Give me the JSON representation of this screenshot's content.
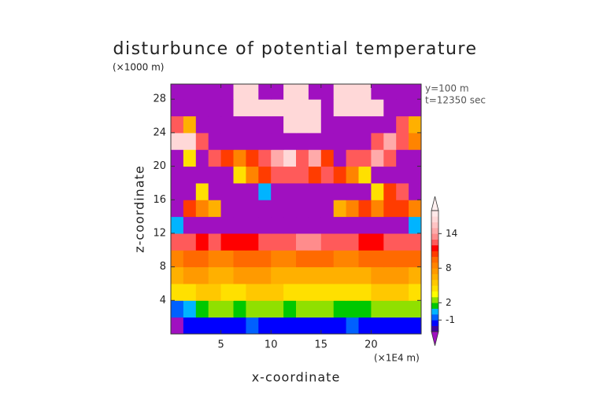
{
  "chart_data": {
    "type": "heatmap",
    "title": "disturbunce of potential temperature",
    "x_label": "x-coordinate",
    "y_label": "z-coordinate",
    "x_unit": "(×1E4 m)",
    "y_unit": "(×1000 m)",
    "annotations": [
      "y=100 m",
      "t=12350 sec"
    ],
    "xlim": [
      0,
      25
    ],
    "ylim": [
      0,
      29.8
    ],
    "xticks": [
      5,
      10,
      15,
      20
    ],
    "yticks": [
      4,
      8,
      12,
      16,
      20,
      24,
      28
    ],
    "x_edges": [
      0,
      1.25,
      2.5,
      3.75,
      5,
      6.25,
      7.5,
      8.75,
      10,
      11.25,
      12.5,
      13.75,
      15,
      16.25,
      17.5,
      18.75,
      20,
      21.25,
      22.5,
      23.75,
      25
    ],
    "y_edges": [
      0,
      2,
      4,
      6,
      8,
      10,
      12,
      14,
      16,
      18,
      20,
      22,
      24,
      26,
      28,
      29.8
    ],
    "z": [
      [
        -4,
        -2,
        -2,
        -2,
        -2,
        -2,
        -1,
        -2,
        -2,
        -2,
        -2,
        -2,
        -2,
        -2,
        -1,
        -2,
        -2,
        -2,
        -2,
        -2
      ],
      [
        -1,
        0,
        1,
        2,
        2,
        1,
        2,
        2,
        2,
        1,
        2,
        2,
        2,
        1,
        1,
        1,
        2,
        2,
        2,
        2
      ],
      [
        4,
        4,
        5,
        5,
        4,
        4,
        5,
        5,
        5,
        4,
        4,
        4,
        4,
        4,
        4,
        4,
        5,
        5,
        5,
        4
      ],
      [
        6,
        7,
        7,
        6,
        6,
        7,
        7,
        7,
        6,
        6,
        6,
        6,
        6,
        6,
        6,
        6,
        7,
        7,
        7,
        6
      ],
      [
        8,
        9,
        9,
        8,
        8,
        9,
        9,
        9,
        8,
        8,
        9,
        9,
        9,
        8,
        8,
        9,
        9,
        9,
        9,
        9
      ],
      [
        12,
        12,
        11,
        12,
        11,
        11,
        11,
        12,
        12,
        12,
        13,
        13,
        12,
        12,
        12,
        11,
        11,
        12,
        12,
        12
      ],
      [
        0,
        -4,
        -4,
        -4,
        -4,
        -4,
        -4,
        -4,
        -4,
        -4,
        -4,
        -4,
        -4,
        -4,
        -4,
        -4,
        -4,
        -4,
        -4,
        0
      ],
      [
        -4,
        10,
        8,
        6,
        -4,
        -4,
        -4,
        -4,
        -4,
        -4,
        -4,
        -4,
        -4,
        6,
        8,
        10,
        8,
        10,
        10,
        8
      ],
      [
        -4,
        -4,
        4,
        -4,
        -4,
        -4,
        -4,
        0,
        -4,
        -4,
        -4,
        -4,
        -4,
        -4,
        -4,
        -4,
        4,
        10,
        12,
        -4
      ],
      [
        -4,
        -4,
        -4,
        -4,
        -4,
        4,
        8,
        10,
        12,
        12,
        12,
        10,
        12,
        10,
        8,
        4,
        -4,
        -4,
        -4,
        -4
      ],
      [
        -4,
        4,
        -4,
        12,
        10,
        8,
        10,
        12,
        14,
        16,
        12,
        14,
        10,
        -4,
        12,
        12,
        14,
        12,
        -4,
        -4
      ],
      [
        16,
        16,
        12,
        -4,
        -4,
        -4,
        -4,
        -4,
        -4,
        -4,
        -4,
        -4,
        -4,
        -4,
        -4,
        -4,
        12,
        14,
        12,
        8
      ],
      [
        12,
        6,
        -4,
        -4,
        -4,
        -4,
        -4,
        -4,
        -4,
        16,
        16,
        16,
        -4,
        -4,
        -4,
        -4,
        -4,
        -4,
        12,
        6
      ],
      [
        -4,
        -4,
        -4,
        -4,
        -4,
        16,
        16,
        16,
        16,
        16,
        16,
        16,
        -4,
        16,
        16,
        16,
        16,
        -4,
        -4,
        -4
      ],
      [
        -4,
        -4,
        -4,
        -4,
        -4,
        16,
        16,
        -4,
        -4,
        16,
        16,
        -4,
        -4,
        16,
        16,
        16,
        -4,
        -4,
        -4,
        -4
      ]
    ],
    "colorbar": {
      "levels": [
        -3,
        -2,
        -1,
        0,
        1,
        2,
        3,
        4,
        5,
        6,
        7,
        8,
        9,
        10,
        11,
        12,
        13,
        14,
        15,
        16,
        17,
        18
      ],
      "colors": [
        "#3c00a0",
        "#0000ff",
        "#0060ff",
        "#00b4ff",
        "#00c800",
        "#90e000",
        "#ffff00",
        "#ffe000",
        "#ffc800",
        "#ffb000",
        "#ff9a00",
        "#ff8400",
        "#ff6a00",
        "#ff3c00",
        "#ff0000",
        "#ff5a5a",
        "#ff8c8c",
        "#ffaaaa",
        "#ffc4c4",
        "#ffd8d8",
        "#ffe8e8"
      ],
      "under_color": "#a010c0",
      "over_color": "#fff0f0",
      "ticks": [
        -1,
        2,
        8,
        14
      ]
    }
  }
}
